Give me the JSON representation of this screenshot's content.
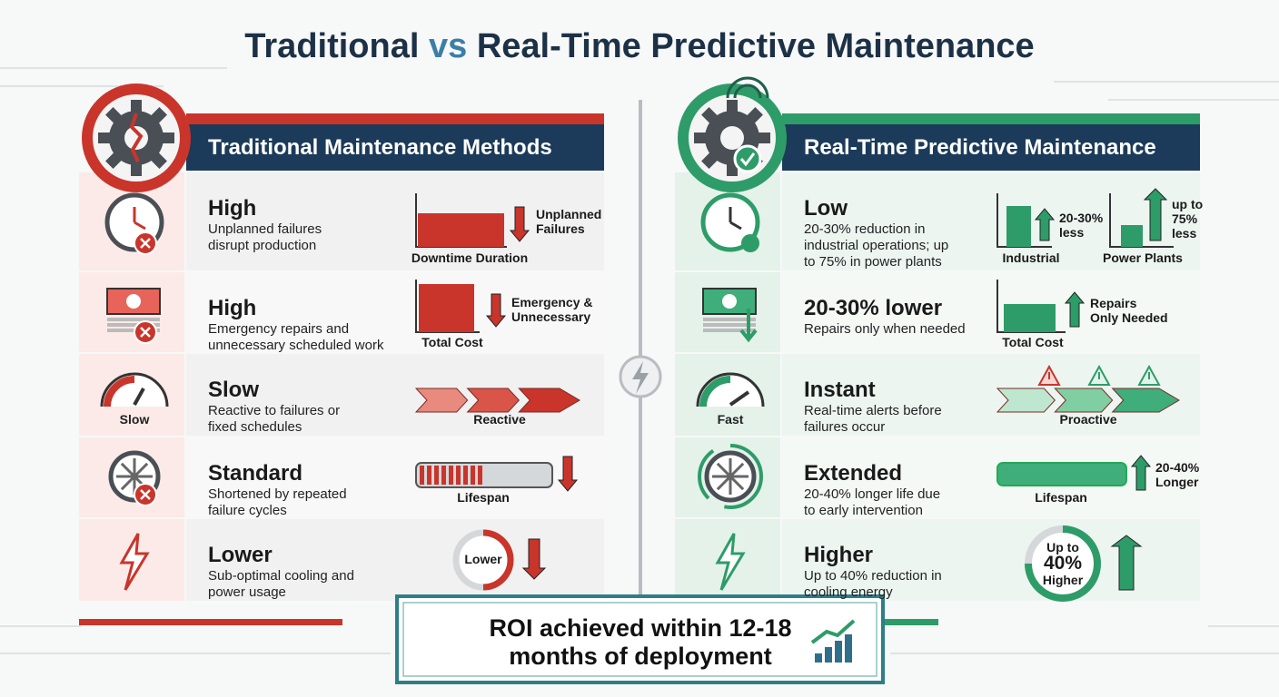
{
  "title": {
    "left": "Traditional",
    "vs": "vs",
    "right": "Real-Time Predictive Maintenance"
  },
  "traditional": {
    "header": "Traditional Maintenance Methods",
    "rows": [
      {
        "heading": "High",
        "description": [
          "Unplanned failures",
          "disrupt production"
        ],
        "labels": [
          [
            "Unplanned",
            "Failures"
          ],
          [
            "Downtime Duration"
          ]
        ]
      },
      {
        "heading": "High",
        "description": [
          "Emergency repairs and",
          "unnecessary scheduled work"
        ],
        "labels": [
          [
            "Emergency &",
            "Unnecessary"
          ],
          [
            "Total Cost"
          ]
        ]
      },
      {
        "heading": "Slow",
        "icon_label": "Slow",
        "description": [
          "Reactive to failures or",
          "fixed schedules"
        ],
        "labels": [
          [
            "Reactive"
          ]
        ]
      },
      {
        "heading": "Standard",
        "description": [
          "Shortened by repeated",
          "failure cycles"
        ],
        "labels": [
          [
            "Lifespan"
          ]
        ]
      },
      {
        "heading": "Lower",
        "description": [
          "Sub-optimal cooling and",
          "power usage"
        ],
        "labels": [
          [
            "Lower"
          ]
        ]
      }
    ]
  },
  "predictive": {
    "header": "Real-Time Predictive Maintenance",
    "rows": [
      {
        "heading": "Low",
        "description": [
          "20-30% reduction in",
          "industrial operations; up",
          "to 75% in power plants"
        ],
        "labels": [
          [
            "20-30%",
            "less"
          ],
          [
            "Industrial"
          ],
          [
            "up to",
            "75%",
            "less"
          ],
          [
            "Power Plants"
          ]
        ]
      },
      {
        "heading": "20-30% lower",
        "description": [
          "Repairs only when needed"
        ],
        "labels": [
          [
            "Repairs",
            "Only Needed"
          ],
          [
            "Total Cost"
          ]
        ]
      },
      {
        "heading": "Instant",
        "icon_label": "Fast",
        "description": [
          "Real-time alerts before",
          "failures occur"
        ],
        "labels": [
          [
            "Proactive"
          ]
        ]
      },
      {
        "heading": "Extended",
        "description": [
          "20-40% longer life due",
          "to early intervention"
        ],
        "labels": [
          [
            "20-40%",
            "Longer"
          ],
          [
            "Lifespan"
          ]
        ]
      },
      {
        "heading": "Higher",
        "description": [
          "Up to 40% reduction in",
          "cooling energy"
        ],
        "labels": [
          [
            "Up to"
          ],
          [
            "40%"
          ],
          [
            "Higher"
          ]
        ]
      }
    ]
  },
  "footer": [
    "ROI achieved within 12-18",
    "months of deployment"
  ]
}
